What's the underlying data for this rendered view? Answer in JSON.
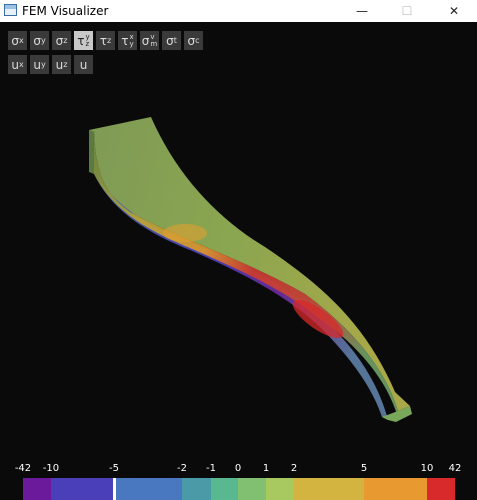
{
  "window": {
    "title": "FEM Visualizer",
    "minimize_glyph": "—",
    "maximize_glyph": "☐",
    "close_glyph": "✕"
  },
  "toolbar": {
    "row1": [
      {
        "id": "sigma-x",
        "base": "σ",
        "sub": "x"
      },
      {
        "id": "sigma-y",
        "base": "σ",
        "sub": "y"
      },
      {
        "id": "sigma-z",
        "base": "σ",
        "sub": "z"
      },
      {
        "id": "tau-yz",
        "base": "τ",
        "sup": "y",
        "sub": "z",
        "active": true
      },
      {
        "id": "tau-z",
        "base": "τ",
        "sub": "z"
      },
      {
        "id": "tau-xy",
        "base": "τ",
        "sup": "x",
        "sub": "y"
      },
      {
        "id": "sigma-vm",
        "base": "σ",
        "sup": "v",
        "sub": "m"
      },
      {
        "id": "sigma-t",
        "base": "σ",
        "sub": "t"
      },
      {
        "id": "sigma-c",
        "base": "σ",
        "sub": "c"
      }
    ],
    "row2": [
      {
        "id": "u-x",
        "base": "u",
        "sub": "x"
      },
      {
        "id": "u-y",
        "base": "u",
        "sub": "y"
      },
      {
        "id": "u-z",
        "base": "u",
        "sub": "z"
      },
      {
        "id": "u",
        "base": "u"
      }
    ]
  },
  "color_scale": {
    "tick_labels": [
      "-42",
      "-10",
      "-5",
      "-2",
      "-1",
      "0",
      "1",
      "2",
      "5",
      "10",
      "42"
    ],
    "band_colors": [
      "#6a1a9a",
      "#4a3fb8",
      "#4a78c0",
      "#4a9aa8",
      "#5ab890",
      "#80c070",
      "#a8c860",
      "#d4b440",
      "#e89a30",
      "#ec7a28",
      "#d82a2a"
    ],
    "marker_label": "-5",
    "marker_color": "#ffffff"
  }
}
